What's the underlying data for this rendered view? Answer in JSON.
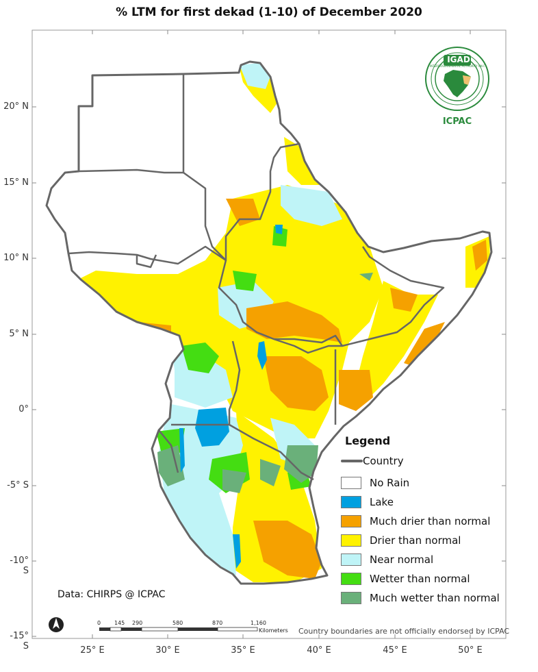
{
  "title": "% LTM  for  first dekad (1-10) of December 2020",
  "latitude_labels": [
    "20° N",
    "15° N",
    "10° N",
    "5° N",
    "0°",
    "-5° S",
    "-10° S",
    "-15° S"
  ],
  "longitude_labels": [
    "25° E",
    "30° E",
    "35° E",
    "40° E",
    "45° E",
    "50° E"
  ],
  "legend": {
    "title": "Legend",
    "items": [
      {
        "label": "Country",
        "kind": "line",
        "color": "#666666"
      },
      {
        "label": "No Rain",
        "kind": "fill",
        "color": "#ffffff"
      },
      {
        "label": "Lake",
        "kind": "fill",
        "color": "#00a0e0"
      },
      {
        "label": "Much drier than normal",
        "kind": "fill",
        "color": "#f5a100"
      },
      {
        "label": "Drier than normal",
        "kind": "fill",
        "color": "#fff200"
      },
      {
        "label": "Near normal",
        "kind": "fill",
        "color": "#bff4f7"
      },
      {
        "label": "Wetter than normal",
        "kind": "fill",
        "color": "#44dd12"
      },
      {
        "label": "Much wetter than normal",
        "kind": "fill",
        "color": "#6ab07a"
      }
    ]
  },
  "scalebar": {
    "ticks": [
      "0",
      "145",
      "290",
      "580",
      "870",
      "1,160"
    ],
    "unit": "Kilometers"
  },
  "data_credit": "Data: CHIRPS @ ICPAC",
  "disclaimer": "Country boundaries are not officially endorsed by ICPAC",
  "logo": {
    "top_text": "IGAD",
    "bottom_text": "ICPAC",
    "ring_text": "INTERGOVERNMENTAL AUTHORITY ON DEVELOPMENT"
  }
}
